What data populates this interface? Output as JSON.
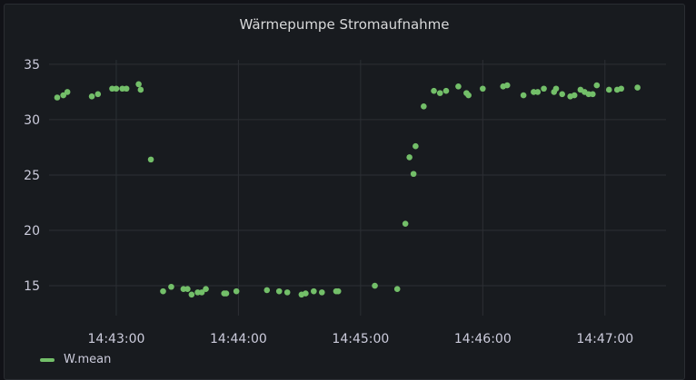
{
  "panel": {
    "title": "Wärmepumpe Stromaufnahme"
  },
  "legend": {
    "label": "W.mean"
  },
  "colors": {
    "series": "#73bf69",
    "grid": "#2c2f34",
    "text": "#ccccdc"
  },
  "chart_data": {
    "type": "scatter",
    "title": "Wärmepumpe Stromaufnahme",
    "xlabel": "",
    "ylabel": "",
    "x_ticks": [
      "14:43:00",
      "14:44:00",
      "14:45:00",
      "14:46:00",
      "14:47:00"
    ],
    "y_ticks": [
      15,
      20,
      25,
      30,
      35
    ],
    "xlim": [
      "14:42:27",
      "14:47:30"
    ],
    "ylim": [
      12.3,
      35.4
    ],
    "grid": true,
    "legend_position": "bottom-left",
    "series": [
      {
        "name": "W.mean",
        "points": [
          [
            "14:42:31",
            32.0
          ],
          [
            "14:42:34",
            32.2
          ],
          [
            "14:42:36",
            32.5
          ],
          [
            "14:42:48",
            32.1
          ],
          [
            "14:42:51",
            32.3
          ],
          [
            "14:42:58",
            32.8
          ],
          [
            "14:43:00",
            32.8
          ],
          [
            "14:43:03",
            32.8
          ],
          [
            "14:43:05",
            32.8
          ],
          [
            "14:43:11",
            33.2
          ],
          [
            "14:43:12",
            32.7
          ],
          [
            "14:43:17",
            26.4
          ],
          [
            "14:43:23",
            14.5
          ],
          [
            "14:43:27",
            14.9
          ],
          [
            "14:43:33",
            14.7
          ],
          [
            "14:43:35",
            14.7
          ],
          [
            "14:43:37",
            14.2
          ],
          [
            "14:43:40",
            14.4
          ],
          [
            "14:43:42",
            14.4
          ],
          [
            "14:43:44",
            14.7
          ],
          [
            "14:43:53",
            14.3
          ],
          [
            "14:43:54",
            14.3
          ],
          [
            "14:43:59",
            14.5
          ],
          [
            "14:44:14",
            14.6
          ],
          [
            "14:44:20",
            14.5
          ],
          [
            "14:44:24",
            14.4
          ],
          [
            "14:44:31",
            14.2
          ],
          [
            "14:44:33",
            14.3
          ],
          [
            "14:44:37",
            14.5
          ],
          [
            "14:44:41",
            14.4
          ],
          [
            "14:44:48",
            14.5
          ],
          [
            "14:44:49",
            14.5
          ],
          [
            "14:45:07",
            15.0
          ],
          [
            "14:45:18",
            14.7
          ],
          [
            "14:45:22",
            20.6
          ],
          [
            "14:45:24",
            26.6
          ],
          [
            "14:45:26",
            25.1
          ],
          [
            "14:45:27",
            27.6
          ],
          [
            "14:45:31",
            31.2
          ],
          [
            "14:45:36",
            32.6
          ],
          [
            "14:45:39",
            32.4
          ],
          [
            "14:45:42",
            32.6
          ],
          [
            "14:45:48",
            33.0
          ],
          [
            "14:45:52",
            32.4
          ],
          [
            "14:45:53",
            32.2
          ],
          [
            "14:46:00",
            32.8
          ],
          [
            "14:46:10",
            33.0
          ],
          [
            "14:46:12",
            33.1
          ],
          [
            "14:46:20",
            32.2
          ],
          [
            "14:46:25",
            32.5
          ],
          [
            "14:46:27",
            32.5
          ],
          [
            "14:46:30",
            32.8
          ],
          [
            "14:46:35",
            32.5
          ],
          [
            "14:46:36",
            32.8
          ],
          [
            "14:46:39",
            32.3
          ],
          [
            "14:46:43",
            32.1
          ],
          [
            "14:46:45",
            32.2
          ],
          [
            "14:46:48",
            32.7
          ],
          [
            "14:46:50",
            32.5
          ],
          [
            "14:46:52",
            32.3
          ],
          [
            "14:46:54",
            32.3
          ],
          [
            "14:46:56",
            33.1
          ],
          [
            "14:47:02",
            32.7
          ],
          [
            "14:47:06",
            32.7
          ],
          [
            "14:47:08",
            32.8
          ],
          [
            "14:47:16",
            32.9
          ]
        ]
      }
    ]
  }
}
